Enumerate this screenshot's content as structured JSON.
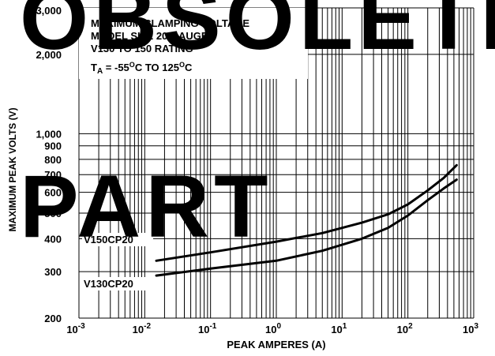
{
  "chart_data": {
    "type": "line",
    "x_scale": "log",
    "y_scale": "log",
    "xlim": [
      0.001,
      1000
    ],
    "ylim": [
      200,
      3000
    ],
    "xlabel": "PEAK AMPERES (A)",
    "ylabel": "MAXIMUM PEAK VOLTS (V)",
    "x_ticks": [
      {
        "base": "10",
        "exp": "-3"
      },
      {
        "base": "10",
        "exp": "-2"
      },
      {
        "base": "10",
        "exp": "-1"
      },
      {
        "base": "10",
        "exp": "0"
      },
      {
        "base": "10",
        "exp": "1"
      },
      {
        "base": "10",
        "exp": "2"
      },
      {
        "base": "10",
        "exp": "3"
      }
    ],
    "x_tick_values": [
      0.001,
      0.01,
      0.1,
      1,
      10,
      100,
      1000
    ],
    "y_ticks": [
      {
        "label": "200",
        "value": 200
      },
      {
        "label": "300",
        "value": 300
      },
      {
        "label": "400",
        "value": 400
      },
      {
        "label": "500",
        "value": 500
      },
      {
        "label": "600",
        "value": 600
      },
      {
        "label": "700",
        "value": 700
      },
      {
        "label": "800",
        "value": 800
      },
      {
        "label": "900",
        "value": 900
      },
      {
        "label": "1,000",
        "value": 1000
      },
      {
        "label": "2,000",
        "value": 2000
      },
      {
        "label": "3,000",
        "value": 3000
      }
    ],
    "annotations": {
      "line1": "MAXIMUM CLAMPING VOLTAGE",
      "line2": "MODEL SIZE 20 GAUGE",
      "line3": "V130 TO 150 RATING",
      "temp_prefix": "T",
      "temp_sub": "A",
      "temp_text": " = -55",
      "temp_sup1": "O",
      "temp_mid": "C TO 125",
      "temp_sup2": "O",
      "temp_end": "C"
    },
    "grid": true,
    "series": [
      {
        "name": "V150CP20",
        "x": [
          0.015,
          0.1,
          1,
          5,
          20,
          50,
          100,
          200,
          350,
          550
        ],
        "y": [
          330,
          355,
          390,
          420,
          460,
          495,
          540,
          610,
          680,
          760
        ]
      },
      {
        "name": "V130CP20",
        "x": [
          0.015,
          0.1,
          1,
          5,
          20,
          50,
          100,
          200,
          350,
          550
        ],
        "y": [
          290,
          308,
          330,
          360,
          400,
          440,
          490,
          560,
          620,
          670
        ]
      }
    ]
  },
  "watermark": {
    "line1": "OBSOLETE",
    "line2": "PART",
    "color": "#e8352a"
  }
}
